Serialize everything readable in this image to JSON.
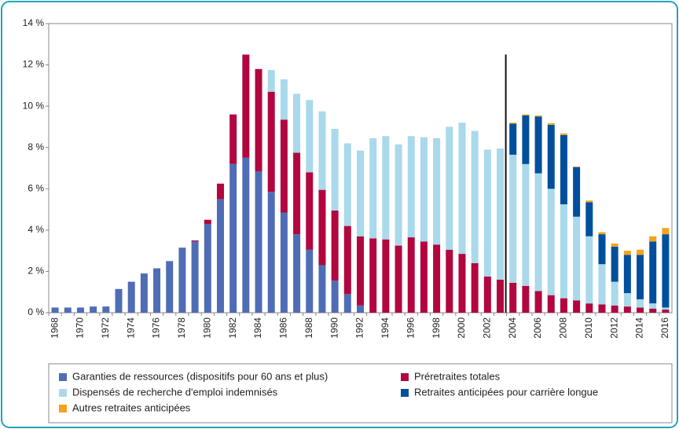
{
  "chart_data": {
    "type": "stacked_bar",
    "categories": [
      "1968",
      null,
      "1970",
      null,
      "1972",
      null,
      "1974",
      null,
      "1976",
      null,
      "1978",
      null,
      "1980",
      null,
      "1982",
      null,
      "1984",
      null,
      "1986",
      null,
      "1988",
      null,
      "1990",
      null,
      "1992",
      null,
      "1994",
      null,
      "1996",
      null,
      "1998",
      null,
      "2000",
      null,
      "2002",
      null,
      "2004",
      null,
      "2006",
      null,
      "2008",
      null,
      "2010",
      null,
      "2012",
      null,
      "2014",
      null,
      "2016"
    ],
    "series": [
      {
        "name": "Garanties de ressources (dispositifs pour 60 ans et plus)",
        "color": "#4f6db5",
        "values": [
          0.25,
          0.25,
          0.25,
          0.3,
          0.3,
          1.15,
          1.5,
          1.9,
          2.15,
          2.5,
          3.15,
          3.45,
          4.3,
          5.5,
          7.2,
          7.5,
          6.85,
          5.85,
          4.85,
          3.8,
          3.05,
          2.3,
          1.55,
          0.9,
          0.35,
          0,
          0,
          0,
          0,
          0,
          0,
          0,
          0,
          0,
          0,
          0,
          0,
          0,
          0,
          0,
          0,
          0,
          0,
          0,
          0,
          0,
          0,
          0,
          0
        ]
      },
      {
        "name": "Préretraites totales",
        "color": "#b2063f",
        "values": [
          0,
          0,
          0,
          0,
          0,
          0,
          0,
          0,
          0,
          0,
          0,
          0.05,
          0.2,
          0.75,
          2.4,
          5.0,
          4.95,
          4.85,
          4.5,
          3.95,
          3.75,
          3.65,
          3.4,
          3.3,
          3.35,
          3.6,
          3.55,
          3.25,
          3.65,
          3.45,
          3.3,
          3.05,
          2.85,
          2.4,
          1.75,
          1.6,
          1.45,
          1.3,
          1.05,
          0.85,
          0.7,
          0.6,
          0.45,
          0.4,
          0.35,
          0.3,
          0.25,
          0.2,
          0.15
        ]
      },
      {
        "name": "Dispensés de recherche d'emploi indemnisés",
        "color": "#a9d9ea",
        "values": [
          0,
          0,
          0,
          0,
          0,
          0,
          0,
          0,
          0,
          0,
          0,
          0,
          0,
          0,
          0,
          0,
          0,
          1.05,
          1.95,
          2.85,
          3.5,
          3.8,
          3.95,
          4.0,
          4.15,
          4.85,
          5.0,
          4.9,
          4.9,
          5.05,
          5.15,
          5.95,
          6.35,
          6.4,
          6.15,
          6.35,
          6.2,
          5.9,
          5.7,
          5.15,
          4.55,
          4.05,
          3.25,
          1.95,
          1.15,
          0.65,
          0.4,
          0.25,
          0.1
        ]
      },
      {
        "name": "Retraites anticipées pour carrière longue",
        "color": "#004f9d",
        "values": [
          0,
          0,
          0,
          0,
          0,
          0,
          0,
          0,
          0,
          0,
          0,
          0,
          0,
          0,
          0,
          0,
          0,
          0,
          0,
          0,
          0,
          0,
          0,
          0,
          0,
          0,
          0,
          0,
          0,
          0,
          0,
          0,
          0,
          0,
          0,
          0,
          1.5,
          2.35,
          2.75,
          3.1,
          3.35,
          2.4,
          1.65,
          1.45,
          1.7,
          1.85,
          2.15,
          3.0,
          3.55
        ]
      },
      {
        "name": "Autres retraites anticipées",
        "color": "#f4a21c",
        "values": [
          0,
          0,
          0,
          0,
          0,
          0,
          0,
          0,
          0,
          0,
          0,
          0,
          0,
          0,
          0,
          0,
          0,
          0,
          0,
          0,
          0,
          0,
          0,
          0,
          0,
          0,
          0,
          0,
          0,
          0,
          0,
          0,
          0,
          0,
          0,
          0,
          0.05,
          0.05,
          0.05,
          0.08,
          0.08,
          0.03,
          0.08,
          0.1,
          0.15,
          0.2,
          0.25,
          0.25,
          0.3
        ]
      }
    ],
    "ylim": [
      0,
      14
    ],
    "yticks": [
      {
        "value": 0,
        "label": "0 %"
      },
      {
        "value": 2,
        "label": "2 %"
      },
      {
        "value": 4,
        "label": "4 %"
      },
      {
        "value": 6,
        "label": "6 %"
      },
      {
        "value": 8,
        "label": "8 %"
      },
      {
        "value": 10,
        "label": "10 %"
      },
      {
        "value": 12,
        "label": "12 %"
      },
      {
        "value": 14,
        "label": "14 %"
      }
    ],
    "grid": false,
    "legend": "bottom"
  }
}
